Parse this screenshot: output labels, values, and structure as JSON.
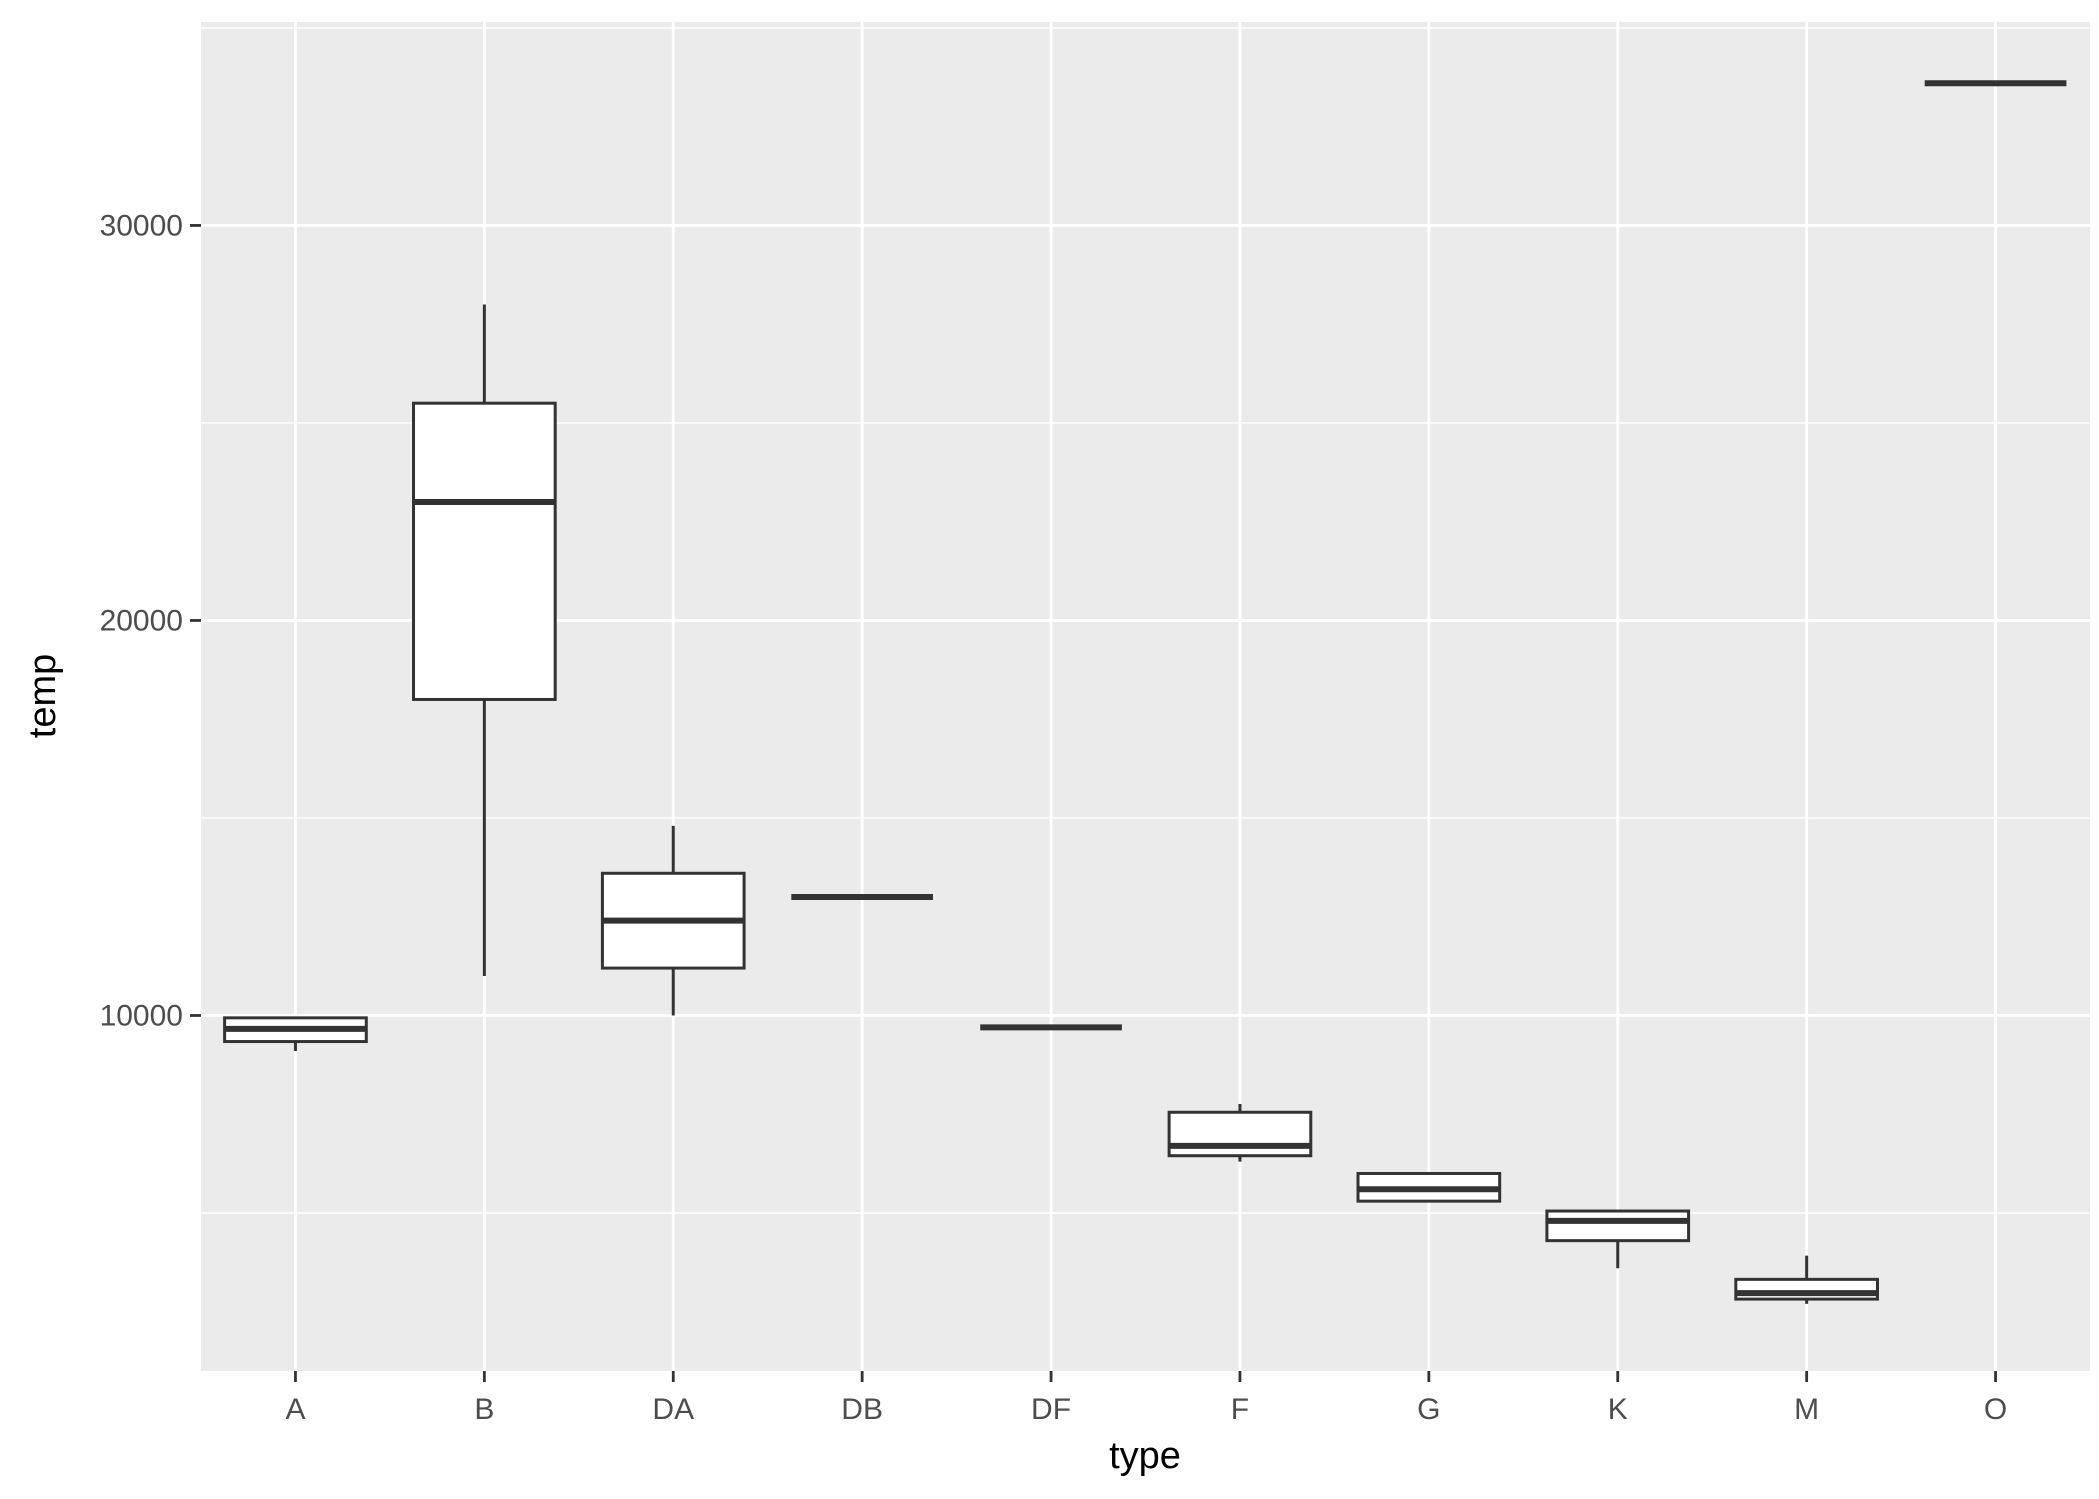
{
  "chart_data": {
    "type": "boxplot",
    "xlabel": "type",
    "ylabel": "temp",
    "categories": [
      "A",
      "B",
      "DA",
      "DB",
      "DF",
      "F",
      "G",
      "K",
      "M",
      "O"
    ],
    "boxes": [
      {
        "category": "A",
        "whisker_low": 9100,
        "q1": 9340,
        "median": 9660,
        "q3": 9940,
        "whisker_high": 9940
      },
      {
        "category": "B",
        "whisker_low": 11000,
        "q1": 18000,
        "median": 23000,
        "q3": 25500,
        "whisker_high": 28000
      },
      {
        "category": "DA",
        "whisker_low": 10000,
        "q1": 11200,
        "median": 12400,
        "q3": 13600,
        "whisker_high": 14800
      },
      {
        "category": "DB",
        "whisker_low": 13000,
        "q1": 13000,
        "median": 13000,
        "q3": 13000,
        "whisker_high": 13000
      },
      {
        "category": "DF",
        "whisker_low": 9700,
        "q1": 9700,
        "median": 9700,
        "q3": 9700,
        "whisker_high": 9700
      },
      {
        "category": "F",
        "whisker_low": 6300,
        "q1": 6450,
        "median": 6700,
        "q3": 7550,
        "whisker_high": 7760
      },
      {
        "category": "G",
        "whisker_low": 5300,
        "q1": 5300,
        "median": 5600,
        "q3": 6000,
        "whisker_high": 6000
      },
      {
        "category": "K",
        "whisker_low": 3600,
        "q1": 4300,
        "median": 4800,
        "q3": 5050,
        "whisker_high": 5050
      },
      {
        "category": "M",
        "whisker_low": 2700,
        "q1": 2820,
        "median": 2970,
        "q3": 3320,
        "whisker_high": 3920
      },
      {
        "category": "O",
        "whisker_low": 33600,
        "q1": 33600,
        "median": 33600,
        "q3": 33600,
        "whisker_high": 33600
      }
    ],
    "yticks": [
      10000,
      20000,
      30000
    ],
    "ylim": [
      1000,
      35150
    ],
    "grid": true,
    "legend": "none",
    "colors": {
      "panel_background": "#ebebeb",
      "grid_line": "#ffffff",
      "box_fill": "#ffffff",
      "box_stroke": "#333333",
      "tick_mark": "#333333",
      "tick_label": "#4d4d4d"
    }
  }
}
